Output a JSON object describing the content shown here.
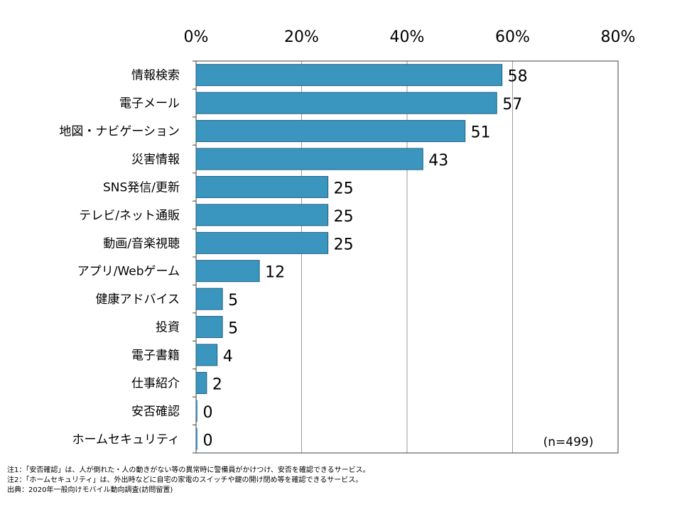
{
  "chart_data": {
    "type": "bar",
    "orientation": "horizontal",
    "categories": [
      "情報検索",
      "電子メール",
      "地図・ナビゲーション",
      "災害情報",
      "SNS発信/更新",
      "テレビ/ネット通販",
      "動画/音楽視聴",
      "アプリ/Webゲーム",
      "健康アドバイス",
      "投資",
      "電子書籍",
      "仕事紹介",
      "安否確認",
      "ホームセキュリティ"
    ],
    "values": [
      58,
      57,
      51,
      43,
      25,
      25,
      25,
      12,
      5,
      5,
      4,
      2,
      0,
      0
    ],
    "data_labels": [
      "58",
      "57",
      "51",
      "43",
      "25",
      "25",
      "25",
      "12",
      "5",
      "5",
      "4",
      "2",
      "0",
      "0"
    ],
    "xlim": [
      0,
      80
    ],
    "x_ticks": [
      "0%",
      "20%",
      "40%",
      "60%",
      "80%"
    ],
    "x_axis_position": "top",
    "grid": true,
    "bar_color": "#3a96bf",
    "bar_edge_color": "#1f5f80",
    "sample_note": "(n=499)"
  },
  "notes": [
    "注1：「安否確認」は、人が倒れた・人の動きがない等の異常時に警備員がかけつけ、安否を確認できるサービス。",
    "注2：「ホームセキュリティ」は、外出時などに自宅の家電のスイッチや鍵の開け閉め等を確認できるサービス。",
    "出典：2020年一般向けモバイル動向調査(訪問留置)"
  ]
}
